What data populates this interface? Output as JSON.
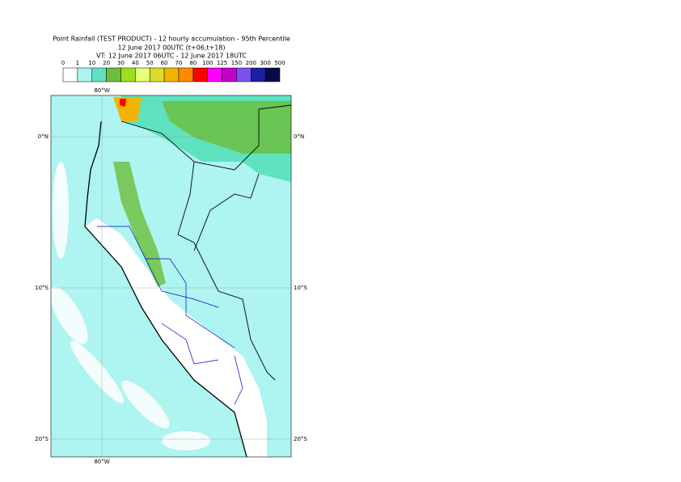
{
  "header": {
    "title": "Point Rainfall (TEST PRODUCT) - 12 hourly accumulation - 95th Percentile",
    "run": "12 June 2017 00UTC (t+06,t+18)",
    "valid": "VT: 12 June 2017 06UTC - 12 June 2017 18UTC"
  },
  "legend": {
    "ticks": [
      0,
      1,
      10,
      20,
      30,
      40,
      50,
      60,
      70,
      80,
      100,
      125,
      150,
      200,
      300,
      500
    ],
    "colors": [
      "#ffffff",
      "#aef4f0",
      "#5ee2bf",
      "#6cbe3a",
      "#9ddf1e",
      "#e8ff7a",
      "#dcdc2a",
      "#f2b400",
      "#ff8a00",
      "#ff0000",
      "#ff00ff",
      "#c400c8",
      "#7a52f0",
      "#1e1ea6",
      "#0a0a48"
    ]
  },
  "map": {
    "lat_labels": [
      "0°N",
      "10°S",
      "20°S"
    ],
    "lon_label": "80°W"
  }
}
